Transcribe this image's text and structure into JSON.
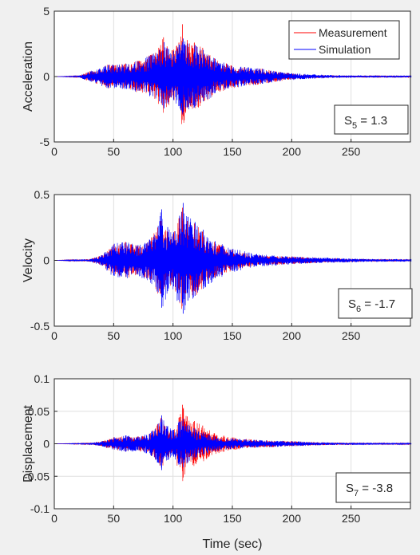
{
  "chart_data": [
    {
      "type": "line",
      "ylabel": "Acceleration",
      "xlabel": "",
      "xlim": [
        0,
        300
      ],
      "ylim": [
        -5,
        5
      ],
      "xticks": [
        0,
        50,
        100,
        150,
        200,
        250
      ],
      "yticks": [
        -5,
        0,
        5
      ],
      "xtick_labels": [
        "0",
        "50",
        "100",
        "150",
        "200",
        "250"
      ],
      "ytick_labels": [
        "-5",
        "0",
        "5"
      ],
      "grid": true,
      "legend": {
        "placement": "top-right",
        "entries": [
          "Measurement",
          "Simulation"
        ]
      },
      "annotation": {
        "base": "S",
        "sub": "5",
        "rest": " = 1.3"
      },
      "series": [
        {
          "name": "Measurement",
          "color": "#ff0000",
          "envelope": {
            "x": [
              0,
              20,
              30,
              45,
              60,
              70,
              80,
              88,
              92,
              95,
              100,
              105,
              108,
              112,
              118,
              125,
              135,
              145,
              160,
              175,
              190,
              210,
              240,
              270,
              300
            ],
            "amp": [
              0,
              0.05,
              0.4,
              0.9,
              1.0,
              1.2,
              1.6,
              2.2,
              3.0,
              2.3,
              2.0,
              2.6,
              4.0,
              2.8,
              2.6,
              2.2,
              1.4,
              1.0,
              0.7,
              0.6,
              0.35,
              0.15,
              0.08,
              0.05,
              0.05
            ]
          }
        },
        {
          "name": "Simulation",
          "color": "#0000ff",
          "envelope": {
            "x": [
              0,
              20,
              30,
              45,
              60,
              70,
              80,
              88,
              92,
              95,
              100,
              105,
              108,
              112,
              118,
              125,
              135,
              145,
              160,
              175,
              190,
              210,
              240,
              270,
              300
            ],
            "amp": [
              0,
              0.05,
              0.4,
              0.9,
              1.0,
              1.2,
              1.6,
              2.1,
              2.7,
              2.2,
              2.0,
              2.5,
              3.0,
              2.6,
              2.5,
              2.1,
              1.4,
              1.0,
              0.75,
              0.6,
              0.35,
              0.2,
              0.1,
              0.08,
              0.08
            ]
          }
        }
      ]
    },
    {
      "type": "line",
      "ylabel": "Velocity",
      "xlabel": "",
      "xlim": [
        0,
        300
      ],
      "ylim": [
        -0.5,
        0.5
      ],
      "xticks": [
        0,
        50,
        100,
        150,
        200,
        250
      ],
      "yticks": [
        -0.5,
        0,
        0.5
      ],
      "xtick_labels": [
        "0",
        "50",
        "100",
        "150",
        "200",
        "250"
      ],
      "ytick_labels": [
        "-0.5",
        "0",
        "0.5"
      ],
      "grid": true,
      "annotation": {
        "base": "S",
        "sub": "6",
        "rest": " = -1.7"
      },
      "series": [
        {
          "name": "Measurement",
          "color": "#ff0000",
          "envelope": {
            "x": [
              0,
              30,
              40,
              50,
              60,
              70,
              80,
              87,
              90,
              95,
              100,
              105,
              108,
              112,
              118,
              125,
              135,
              150,
              170,
              200,
              230,
              260,
              300
            ],
            "amp": [
              0,
              0.01,
              0.04,
              0.12,
              0.14,
              0.11,
              0.15,
              0.25,
              0.3,
              0.22,
              0.2,
              0.32,
              0.4,
              0.3,
              0.28,
              0.22,
              0.14,
              0.08,
              0.04,
              0.03,
              0.015,
              0.01,
              0.008
            ]
          }
        },
        {
          "name": "Simulation",
          "color": "#0000ff",
          "envelope": {
            "x": [
              0,
              30,
              40,
              50,
              60,
              70,
              80,
              87,
              90,
              95,
              100,
              105,
              108,
              112,
              118,
              125,
              135,
              150,
              170,
              200,
              230,
              260,
              300
            ],
            "amp": [
              0,
              0.01,
              0.04,
              0.13,
              0.14,
              0.12,
              0.16,
              0.27,
              0.4,
              0.26,
              0.22,
              0.35,
              0.45,
              0.34,
              0.3,
              0.24,
              0.15,
              0.09,
              0.05,
              0.03,
              0.02,
              0.012,
              0.01
            ]
          }
        }
      ]
    },
    {
      "type": "line",
      "ylabel": "Displacement",
      "xlabel": "Time (sec)",
      "xlim": [
        0,
        300
      ],
      "ylim": [
        -0.1,
        0.1
      ],
      "xticks": [
        0,
        50,
        100,
        150,
        200,
        250
      ],
      "yticks": [
        -0.1,
        -0.05,
        0,
        0.05,
        0.1
      ],
      "xtick_labels": [
        "0",
        "50",
        "100",
        "150",
        "200",
        "250"
      ],
      "ytick_labels": [
        "-0.1",
        "-0.05",
        "0",
        "0.05",
        "0.1"
      ],
      "grid": true,
      "annotation": {
        "base": "S",
        "sub": "7",
        "rest": " = -3.8"
      },
      "series": [
        {
          "name": "Measurement",
          "color": "#ff0000",
          "envelope": {
            "x": [
              0,
              30,
              40,
              50,
              60,
              70,
              80,
              87,
              90,
              95,
              100,
              105,
              108,
              112,
              118,
              125,
              135,
              150,
              170,
              200,
              230,
              260,
              300
            ],
            "amp": [
              0,
              0.001,
              0.004,
              0.01,
              0.012,
              0.011,
              0.015,
              0.03,
              0.04,
              0.026,
              0.02,
              0.04,
              0.06,
              0.042,
              0.035,
              0.028,
              0.016,
              0.01,
              0.006,
              0.004,
              0.002,
              0.0015,
              0.001
            ]
          }
        },
        {
          "name": "Simulation",
          "color": "#0000ff",
          "envelope": {
            "x": [
              0,
              30,
              40,
              50,
              60,
              70,
              80,
              87,
              90,
              95,
              100,
              105,
              108,
              112,
              118,
              125,
              135,
              150,
              170,
              200,
              230,
              260,
              300
            ],
            "amp": [
              0,
              0.001,
              0.004,
              0.01,
              0.013,
              0.011,
              0.016,
              0.032,
              0.045,
              0.028,
              0.022,
              0.035,
              0.04,
              0.03,
              0.024,
              0.018,
              0.012,
              0.008,
              0.006,
              0.004,
              0.002,
              0.0015,
              0.001
            ]
          }
        }
      ]
    }
  ]
}
